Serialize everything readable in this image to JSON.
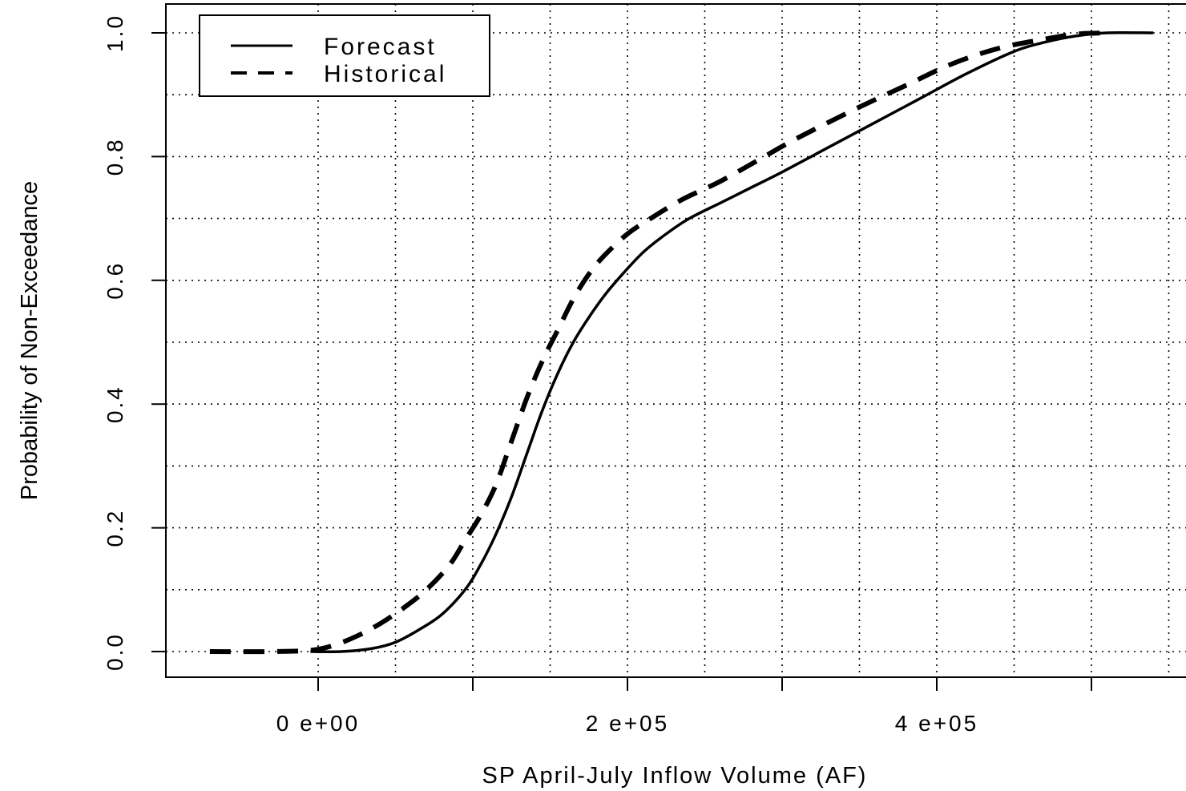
{
  "chart_data": {
    "type": "line",
    "title": "",
    "xlabel": "SP April-July Inflow Volume (AF)",
    "ylabel": "Probability of Non-Exceedance",
    "xlim": [
      -100000,
      560000
    ],
    "ylim": [
      -0.04,
      1.04
    ],
    "x_ticks": [
      {
        "value": 0,
        "label": "0  e+00"
      },
      {
        "value": 100000,
        "label": ""
      },
      {
        "value": 200000,
        "label": "2  e+05"
      },
      {
        "value": 300000,
        "label": ""
      },
      {
        "value": 400000,
        "label": "4  e+05"
      },
      {
        "value": 500000,
        "label": ""
      }
    ],
    "y_ticks": [
      {
        "value": 0.0,
        "label": "0.0"
      },
      {
        "value": 0.2,
        "label": "0.2"
      },
      {
        "value": 0.4,
        "label": "0.4"
      },
      {
        "value": 0.6,
        "label": "0.6"
      },
      {
        "value": 0.8,
        "label": "0.8"
      },
      {
        "value": 1.0,
        "label": "1.0"
      }
    ],
    "grid": true,
    "legend_position": "top-left",
    "series": [
      {
        "name": "Forecast",
        "style": "solid",
        "x": [
          -5000,
          15000,
          35000,
          50000,
          65000,
          80000,
          95000,
          105000,
          115000,
          125000,
          135000,
          145000,
          155000,
          165000,
          175000,
          185000,
          195000,
          210000,
          225000,
          240000,
          260000,
          280000,
          300000,
          330000,
          360000,
          390000,
          420000,
          450000,
          470000,
          490000,
          510000,
          540000
        ],
        "y": [
          0.0,
          0.0,
          0.005,
          0.015,
          0.035,
          0.06,
          0.1,
          0.14,
          0.19,
          0.25,
          0.32,
          0.39,
          0.45,
          0.5,
          0.54,
          0.575,
          0.605,
          0.645,
          0.675,
          0.7,
          0.725,
          0.75,
          0.775,
          0.815,
          0.855,
          0.895,
          0.935,
          0.97,
          0.985,
          0.995,
          1.0,
          1.0
        ]
      },
      {
        "name": "Historical",
        "style": "dashed",
        "x": [
          -70000,
          -30000,
          -5000,
          10000,
          25000,
          40000,
          55000,
          70000,
          85000,
          95000,
          105000,
          115000,
          125000,
          135000,
          145000,
          155000,
          165000,
          175000,
          185000,
          200000,
          215000,
          235000,
          260000,
          285000,
          310000,
          350000,
          380000,
          410000,
          440000,
          470000,
          490000,
          510000
        ],
        "y": [
          0.0,
          0.0,
          0.002,
          0.01,
          0.025,
          0.045,
          0.07,
          0.1,
          0.14,
          0.18,
          0.22,
          0.27,
          0.34,
          0.41,
          0.47,
          0.52,
          0.57,
          0.61,
          0.64,
          0.675,
          0.7,
          0.73,
          0.76,
          0.795,
          0.83,
          0.88,
          0.915,
          0.95,
          0.975,
          0.99,
          0.998,
          1.0
        ]
      }
    ]
  }
}
